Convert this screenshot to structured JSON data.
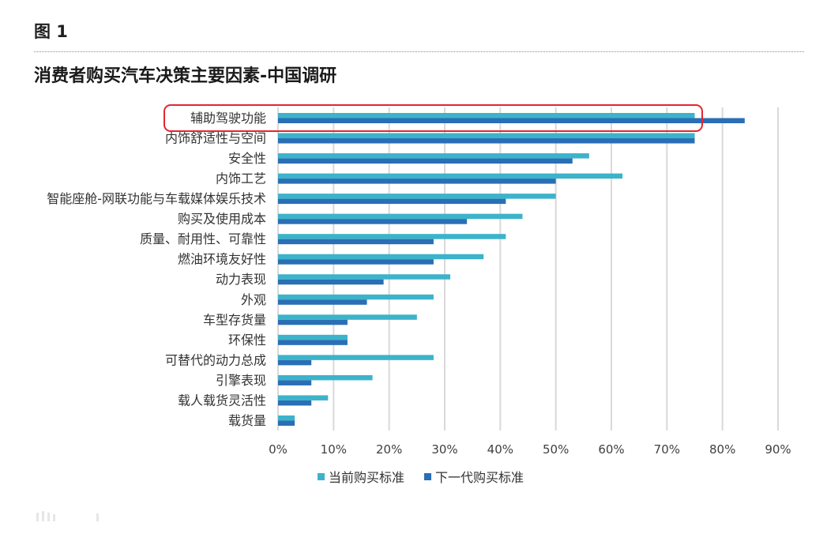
{
  "figure_label": "图 1",
  "chart_data": {
    "type": "bar",
    "orientation": "horizontal",
    "title": "消费者购买汽车决策主要因素-中国调研",
    "categories": [
      "辅助驾驶功能",
      "内饰舒适性与空间",
      "安全性",
      "内饰工艺",
      "智能座舱-网联功能与车载媒体娱乐技术",
      "购买及使用成本",
      "质量、耐用性、可靠性",
      "燃油环境友好性",
      "动力表现",
      "外观",
      "车型存货量",
      "环保性",
      "可替代的动力总成",
      "引擎表现",
      "载人载货灵活性",
      "载货量"
    ],
    "series": [
      {
        "name": "当前购买标准",
        "color": "#3cb3ca",
        "values": [
          75,
          75,
          56,
          62,
          50,
          44,
          41,
          37,
          31,
          28,
          25,
          12.5,
          28,
          17,
          9,
          3
        ]
      },
      {
        "name": "下一代购买标准",
        "color": "#2a6eb5",
        "values": [
          84,
          75,
          53,
          50,
          41,
          34,
          28,
          28,
          19,
          16,
          12.5,
          12.5,
          6,
          6,
          6,
          3
        ]
      }
    ],
    "xlim": [
      0,
      90
    ],
    "xticks": [
      0,
      10,
      20,
      30,
      40,
      50,
      60,
      70,
      80,
      90
    ],
    "xtick_labels": [
      "0%",
      "10%",
      "20%",
      "30%",
      "40%",
      "50%",
      "60%",
      "70%",
      "80%",
      "90%"
    ],
    "grid": true,
    "legend_position": "bottom",
    "highlighted_index": 0,
    "highlight_color": "#e3262f"
  },
  "colors": {
    "gridline": "#d9d9d9",
    "divider": "#8c8c8c",
    "watermark": "#e6e6e6"
  }
}
